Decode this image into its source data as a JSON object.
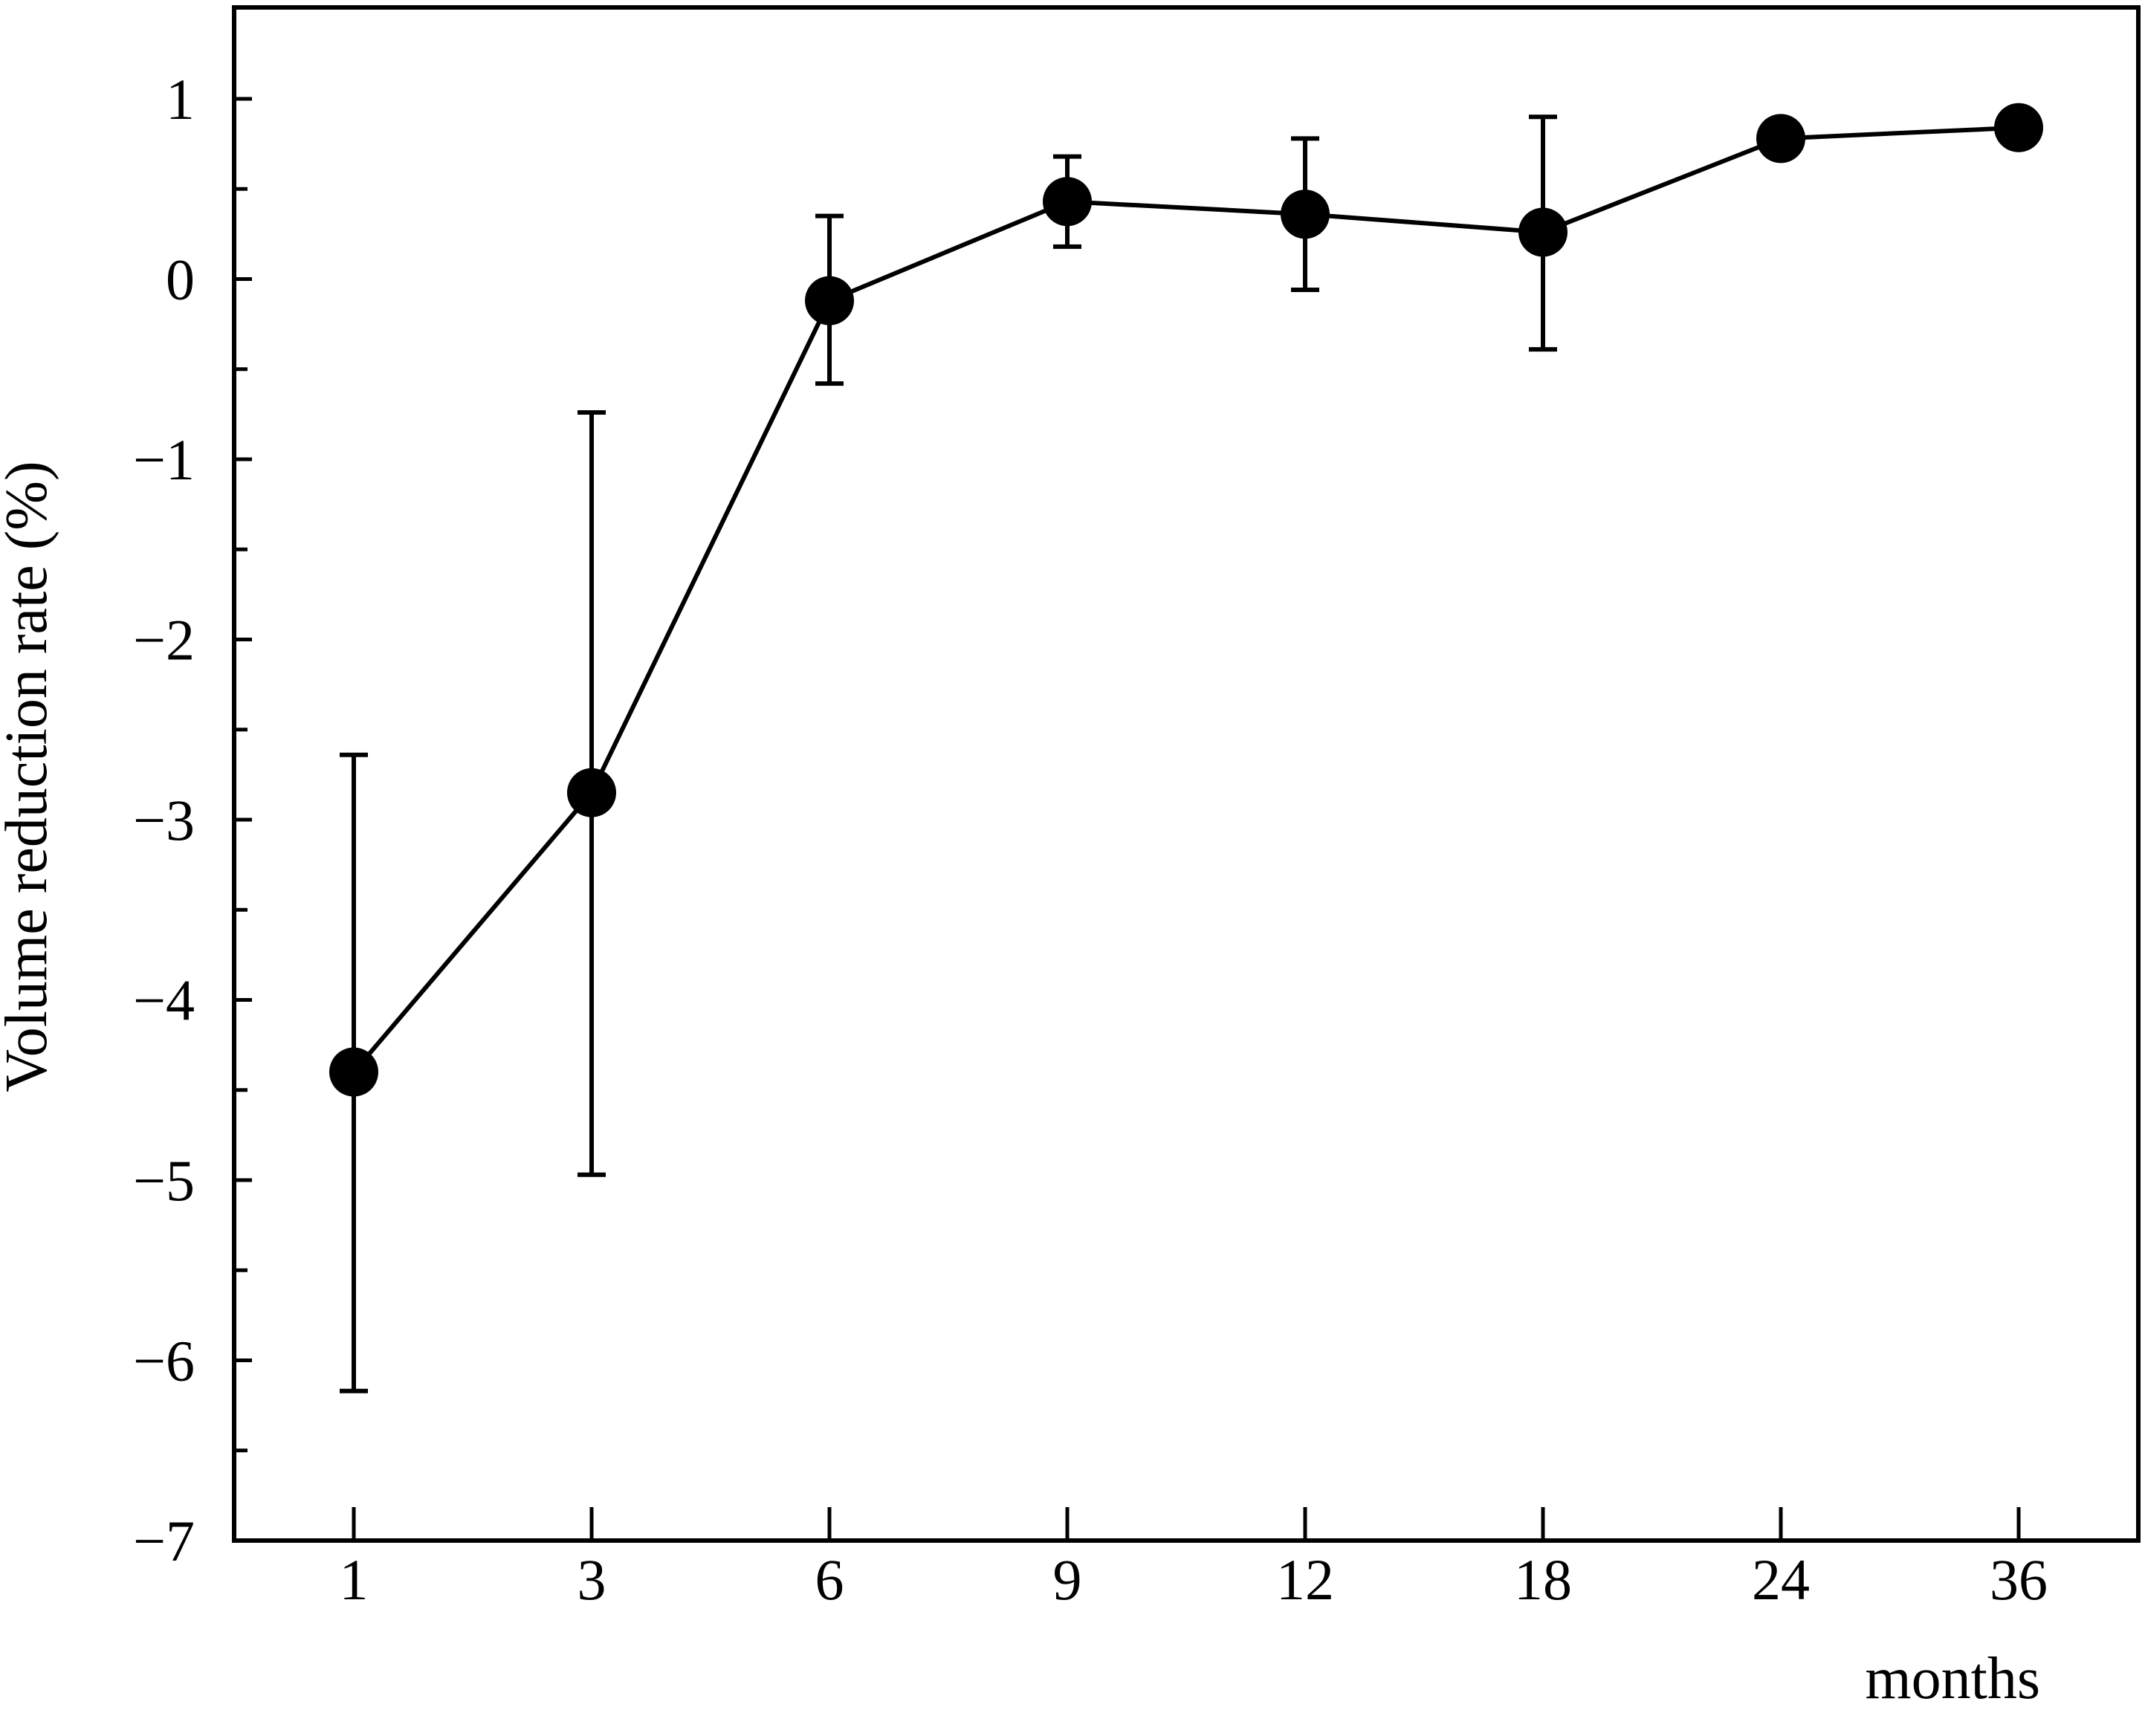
{
  "chart_data": {
    "type": "line",
    "title": "",
    "xlabel": "months",
    "ylabel": "Volume reduction rate (%)",
    "categories": [
      "1",
      "3",
      "6",
      "9",
      "12",
      "18",
      "24",
      "36"
    ],
    "ylim": [
      -7,
      1.5
    ],
    "yticks": [
      1,
      0,
      -1,
      -2,
      -3,
      -4,
      -5,
      -6,
      -7
    ],
    "ytick_labels": [
      "1",
      "0",
      "−1",
      "−2",
      "−3",
      "−4",
      "−5",
      "−6",
      "−7"
    ],
    "grid": false,
    "legend": "none",
    "series": [
      {
        "values": [
          -4.4,
          -2.85,
          -0.12,
          0.43,
          0.36,
          0.26,
          0.78,
          0.84
        ],
        "error_low": [
          -6.17,
          -4.97,
          -0.58,
          0.18,
          -0.06,
          -0.39,
          null,
          null
        ],
        "error_high": [
          -2.64,
          -0.74,
          0.35,
          0.68,
          0.78,
          0.9,
          null,
          null
        ]
      }
    ],
    "colors": {
      "line": "#000000",
      "marker": "#000000",
      "axis": "#000000"
    }
  }
}
